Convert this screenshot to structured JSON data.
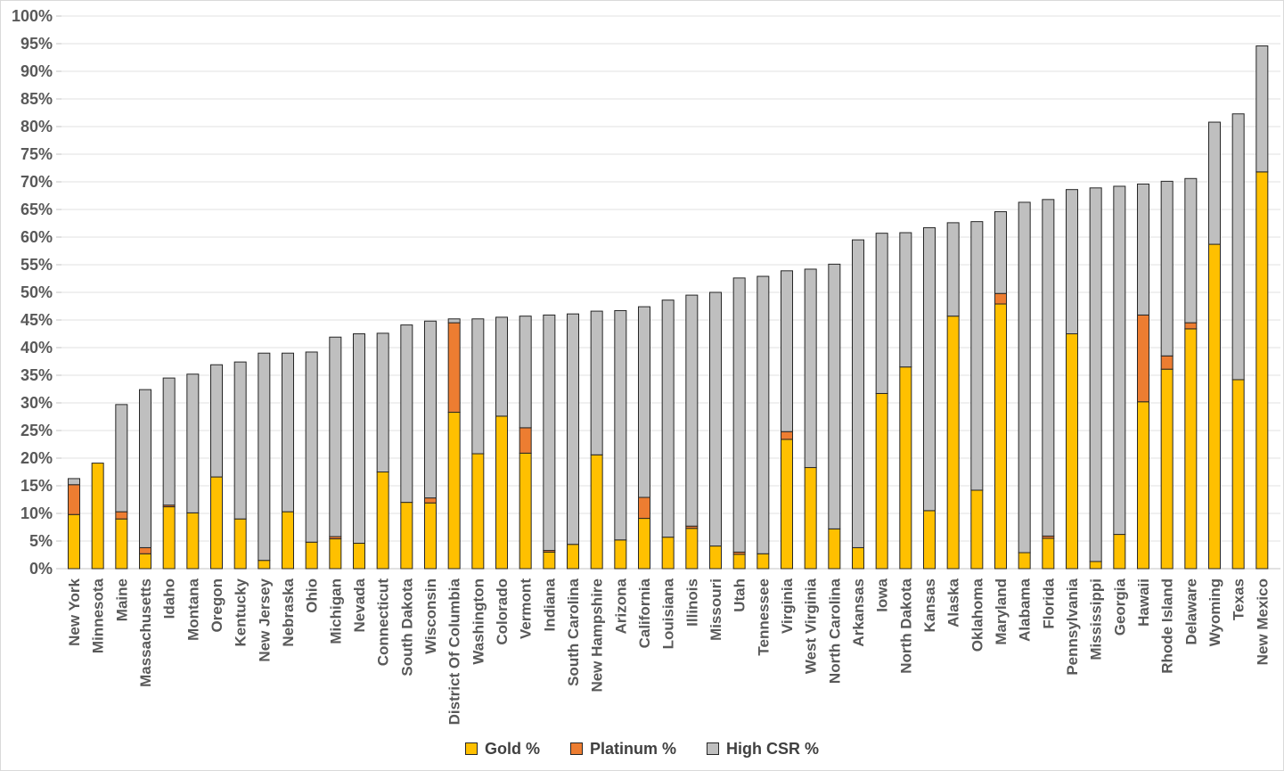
{
  "chart_data": {
    "type": "bar",
    "stacked": true,
    "title": "",
    "xlabel": "",
    "ylabel": "",
    "ylim": [
      0,
      100
    ],
    "ytick_step": 5,
    "grid": "horizontal",
    "legend_position": "bottom",
    "ytick_labels": [
      "0%",
      "5%",
      "10%",
      "15%",
      "20%",
      "25%",
      "30%",
      "35%",
      "40%",
      "45%",
      "50%",
      "55%",
      "60%",
      "65%",
      "70%",
      "75%",
      "80%",
      "85%",
      "90%",
      "95%",
      "100%"
    ],
    "legend_items": [
      {
        "key": "gold",
        "label": "Gold %",
        "color": "#FFC000"
      },
      {
        "key": "platinum",
        "label": "Platinum %",
        "color": "#ED7D31"
      },
      {
        "key": "high_csr",
        "label": "High CSR %",
        "color": "#BFBFBF"
      }
    ],
    "colors": {
      "gold": "#FFC000",
      "platinum": "#ED7D31",
      "high_csr": "#BFBFBF",
      "bar_border": "#262626",
      "grid_line": "#e2e2e2",
      "axis_line": "#c3c3c3",
      "axis_text": "#595959"
    },
    "categories": [
      "New York",
      "Minnesota",
      "Maine",
      "Massachusetts",
      "Idaho",
      "Montana",
      "Oregon",
      "Kentucky",
      "New Jersey",
      "Nebraska",
      "Ohio",
      "Michigan",
      "Nevada",
      "Connecticut",
      "South Dakota",
      "Wisconsin",
      "District Of Columbia",
      "Washington",
      "Colorado",
      "Vermont",
      "Indiana",
      "South Carolina",
      "New Hampshire",
      "Arizona",
      "California",
      "Louisiana",
      "Illinois",
      "Missouri",
      "Utah",
      "Tennessee",
      "Virginia",
      "West Virginia",
      "North Carolina",
      "Arkansas",
      "Iowa",
      "North Dakota",
      "Kansas",
      "Alaska",
      "Oklahoma",
      "Maryland",
      "Alabama",
      "Florida",
      "Pennsylvania",
      "Mississippi",
      "Georgia",
      "Hawaii",
      "Rhode Island",
      "Delaware",
      "Wyoming",
      "Texas",
      "New Mexico"
    ],
    "series": [
      {
        "name": "Gold %",
        "key": "gold",
        "values": [
          9.8,
          19.1,
          9.0,
          2.7,
          11.2,
          10.1,
          16.6,
          9.0,
          1.5,
          10.3,
          4.8,
          5.4,
          4.6,
          17.5,
          12.0,
          11.9,
          28.3,
          20.8,
          27.6,
          20.9,
          3.0,
          4.4,
          20.6,
          5.2,
          9.1,
          5.7,
          7.3,
          4.1,
          2.6,
          2.7,
          23.4,
          18.3,
          7.2,
          3.8,
          31.7,
          36.5,
          10.5,
          45.7,
          14.2,
          47.9,
          2.9,
          5.5,
          42.5,
          1.3,
          6.2,
          30.2,
          36.1,
          43.4,
          58.7,
          34.2,
          71.8
        ]
      },
      {
        "name": "Platinum %",
        "key": "platinum",
        "values": [
          5.4,
          0,
          1.3,
          1.1,
          0.3,
          0,
          0,
          0,
          0,
          0,
          0,
          0.4,
          0,
          0,
          0,
          0.9,
          16.2,
          0,
          0,
          4.6,
          0.3,
          0,
          0,
          0,
          3.8,
          0,
          0.4,
          0,
          0.4,
          0,
          1.4,
          0,
          0,
          0,
          0,
          0,
          0,
          0,
          0,
          1.9,
          0,
          0.4,
          0,
          0,
          0,
          15.7,
          2.4,
          1.1,
          0,
          0,
          0
        ]
      },
      {
        "name": "High CSR %",
        "key": "high_csr",
        "values": [
          1.1,
          0,
          19.4,
          28.6,
          23.0,
          25.1,
          20.3,
          28.4,
          37.5,
          28.7,
          34.4,
          36.1,
          37.9,
          25.1,
          32.1,
          32.0,
          0.7,
          24.4,
          17.9,
          20.2,
          42.6,
          41.7,
          26.0,
          41.5,
          34.5,
          42.9,
          41.8,
          45.9,
          49.6,
          50.2,
          29.1,
          35.9,
          47.9,
          55.7,
          29.0,
          24.3,
          51.2,
          16.9,
          48.6,
          14.8,
          63.4,
          60.9,
          26.1,
          67.6,
          63.0,
          23.7,
          31.6,
          26.1,
          22.1,
          48.1,
          22.8
        ]
      }
    ]
  }
}
